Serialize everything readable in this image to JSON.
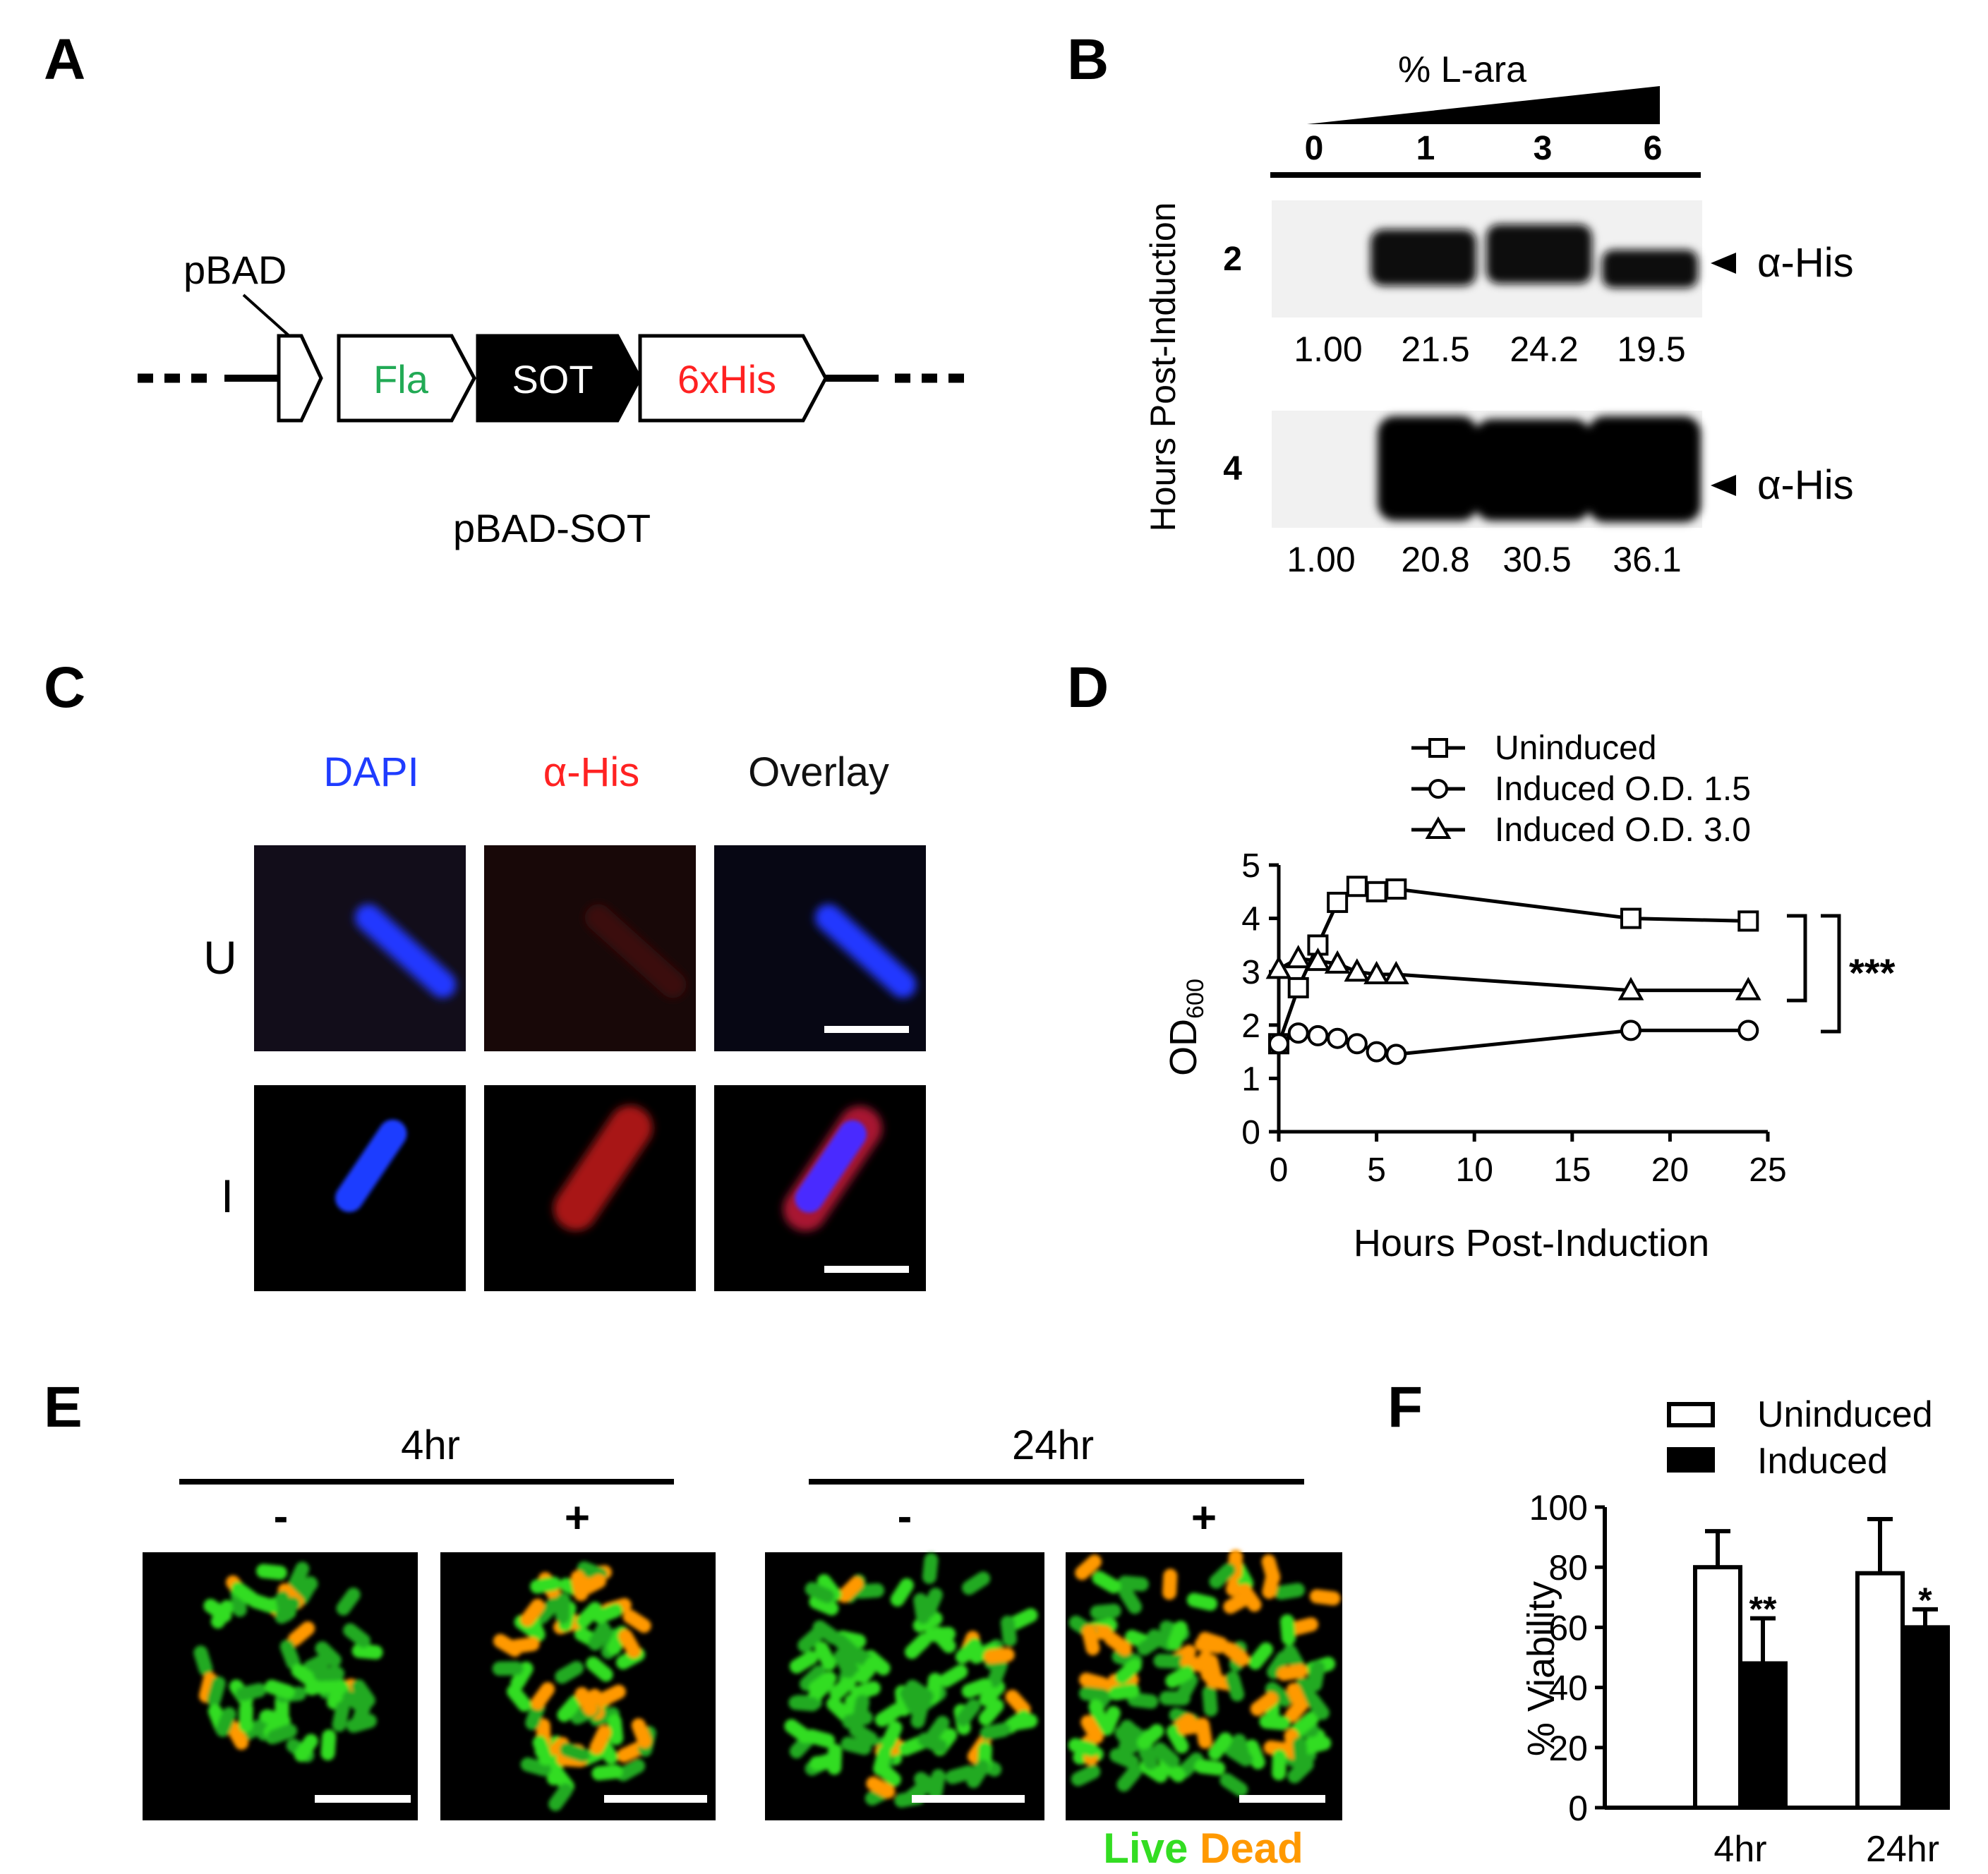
{
  "panels": {
    "a": "A",
    "b": "B",
    "c": "C",
    "d": "D",
    "e": "E",
    "f": "F"
  },
  "panel_a": {
    "promoter": "pBAD",
    "segments": [
      "Fla",
      "SOT",
      "6xHis"
    ],
    "construct": "pBAD-SOT",
    "colors": {
      "fla": "#22aa55",
      "his": "#ff2222",
      "sot": "#000000"
    }
  },
  "panel_b": {
    "title": "% L-ara",
    "lanes": [
      "0",
      "1",
      "3",
      "6"
    ],
    "ylabel": "Hours Post-Induction",
    "antibody": "α-His",
    "rows": [
      {
        "time": "2",
        "quant": [
          "1.00",
          "21.5",
          "24.2",
          "19.5"
        ]
      },
      {
        "time": "4",
        "quant": [
          "1.00",
          "20.8",
          "30.5",
          "36.1"
        ]
      }
    ]
  },
  "panel_c": {
    "columns": [
      "DAPI",
      "α-His",
      "Overlay"
    ],
    "rows": [
      "U",
      "I"
    ],
    "colors": {
      "dapi": "#1f3cff",
      "his": "#ff2222",
      "overlay": "#111111"
    }
  },
  "panel_d": {
    "chart_data": {
      "type": "line",
      "xlabel": "Hours Post-Induction",
      "ylabel": "OD",
      "ylabel_sub": "600",
      "xlim": [
        0,
        25
      ],
      "ylim": [
        0,
        5
      ],
      "xticks": [
        "0",
        "5",
        "10",
        "15",
        "20",
        "25"
      ],
      "yticks": [
        "0",
        "1",
        "2",
        "3",
        "4",
        "5"
      ],
      "legend_position": "top",
      "significance": "***",
      "series": [
        {
          "name": "Uninduced",
          "marker": "square",
          "x": [
            0,
            1,
            2,
            3,
            4,
            5,
            6,
            18,
            24
          ],
          "y": [
            1.65,
            2.7,
            3.5,
            4.3,
            4.6,
            4.5,
            4.55,
            4.0,
            3.95
          ]
        },
        {
          "name": "Induced O.D. 1.5",
          "marker": "circle",
          "x": [
            0,
            1,
            2,
            3,
            4,
            5,
            6,
            18,
            24
          ],
          "y": [
            1.65,
            1.85,
            1.8,
            1.75,
            1.65,
            1.5,
            1.45,
            1.9,
            1.9
          ]
        },
        {
          "name": "Induced O.D. 3.0",
          "marker": "triangle",
          "x": [
            0,
            1,
            2,
            3,
            4,
            5,
            6,
            18,
            24
          ],
          "y": [
            3.05,
            3.25,
            3.2,
            3.15,
            3.0,
            2.95,
            2.95,
            2.65,
            2.65
          ]
        }
      ]
    }
  },
  "panel_e": {
    "groups": [
      {
        "label": "4hr",
        "conditions": [
          "-",
          "+"
        ]
      },
      {
        "label": "24hr",
        "conditions": [
          "-",
          "+"
        ]
      }
    ],
    "stain_live": "Live",
    "stain_dead": "Dead",
    "colors": {
      "live": "#33dd22",
      "dead": "#ff9900"
    }
  },
  "panel_f": {
    "chart_data": {
      "type": "bar",
      "categories": [
        "4hr",
        "24hr"
      ],
      "ylabel": "% Viability",
      "ylim": [
        0,
        100
      ],
      "yticks": [
        "0",
        "20",
        "40",
        "60",
        "80",
        "100"
      ],
      "legend_position": "top-right",
      "series": [
        {
          "name": "Uninduced",
          "fill": "#ffffff",
          "values": [
            80,
            78
          ],
          "errors": [
            12,
            18
          ]
        },
        {
          "name": "Induced",
          "fill": "#000000",
          "values": [
            48,
            60
          ],
          "errors": [
            15,
            6
          ]
        }
      ],
      "significance": [
        "**",
        "*"
      ]
    }
  }
}
